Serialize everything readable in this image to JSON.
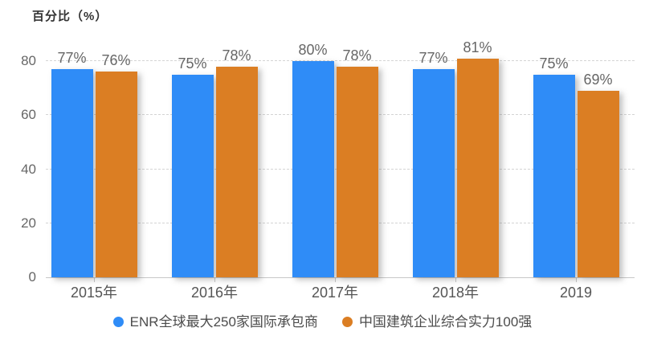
{
  "chart_data": {
    "type": "bar",
    "title": "百分比（%）",
    "categories": [
      "2015年",
      "2016年",
      "2017年",
      "2018年",
      "2019"
    ],
    "series": [
      {
        "name": "ENR全球最大250家国际承包商",
        "color": "#2F8CF7",
        "values": [
          77,
          75,
          80,
          77,
          75
        ]
      },
      {
        "name": "中国建筑企业综合实力100强",
        "color": "#DB7E23",
        "values": [
          76,
          78,
          78,
          81,
          69
        ]
      }
    ],
    "value_labels": [
      [
        "77%",
        "75%",
        "80%",
        "77%",
        "75%"
      ],
      [
        "76%",
        "78%",
        "78%",
        "81%",
        "69%"
      ]
    ],
    "value_suffix": "%",
    "ylabel": "百分比（%）",
    "yticks": [
      0,
      20,
      40,
      60,
      80
    ],
    "ylim": [
      0,
      80
    ],
    "grid": "horizontal-dashed",
    "legend_position": "bottom"
  }
}
